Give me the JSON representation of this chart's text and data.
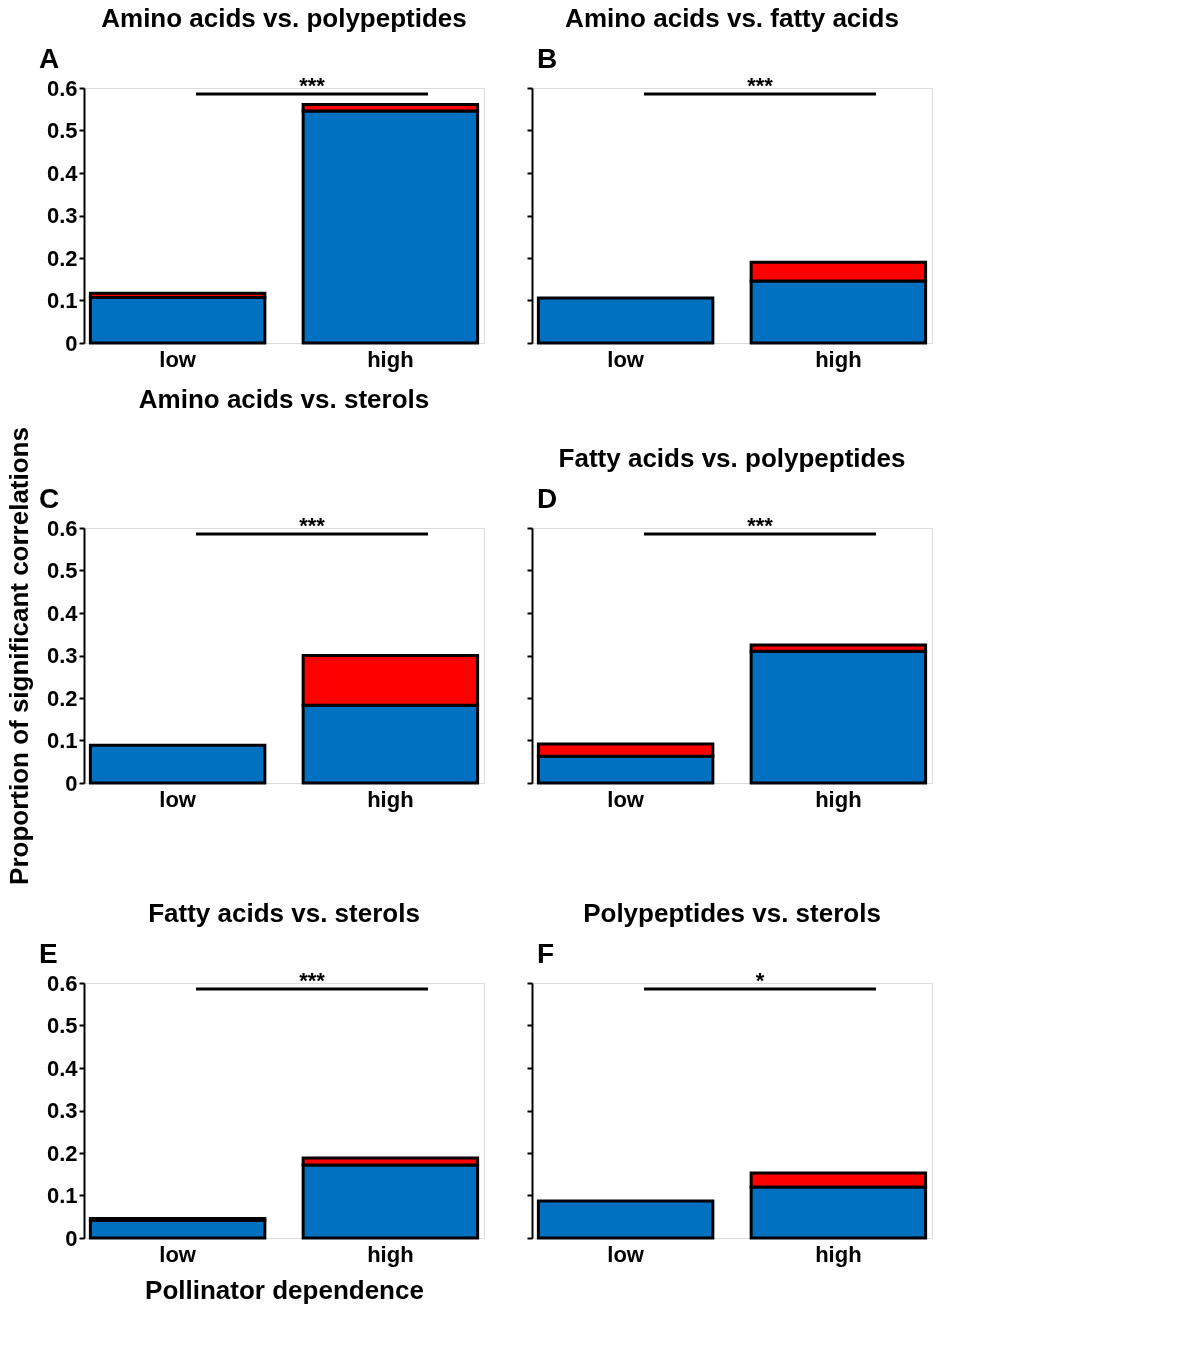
{
  "chart_data": [
    {
      "type": "bar",
      "stacked": true,
      "title": "Amino acids vs. polypeptides",
      "annotations": [
        "A",
        "***"
      ],
      "categories": [
        "low",
        "high"
      ],
      "ylim": [
        0,
        0.6
      ],
      "yticks": [
        0,
        0.1,
        0.2,
        0.3,
        0.4,
        0.5,
        0.6
      ],
      "series": [
        {
          "color": "#0070c0",
          "values": [
            0.107,
            0.546
          ]
        },
        {
          "color": "#ff0000",
          "values": [
            0.01,
            0.015
          ]
        }
      ]
    },
    {
      "type": "bar",
      "stacked": true,
      "title": "Amino acids vs. fatty acids",
      "annotations": [
        "B",
        "***"
      ],
      "categories": [
        "low",
        "high"
      ],
      "ylim": [
        0,
        0.6
      ],
      "yticks": [
        {
          "value": 0,
          "label": null
        },
        {
          "value": 0.1,
          "label": null
        },
        {
          "value": 0.2,
          "label": null
        },
        {
          "value": 0.3,
          "label": null
        },
        {
          "value": 0.4,
          "label": null
        },
        {
          "value": 0.5,
          "label": null
        },
        {
          "value": 0.6,
          "label": null
        }
      ],
      "tick_labels": "x",
      "series": [
        {
          "color": "#0070c0",
          "values": [
            0.106,
            0.146
          ]
        },
        {
          "color": "#ff0000",
          "values": [
            null,
            0.044
          ]
        }
      ]
    },
    {
      "type": "bar",
      "stacked": true,
      "title": "Amino acids vs. sterols",
      "ylabel": "Proportion of significant correlations",
      "annotations": [
        "C",
        "***"
      ],
      "categories": [
        "low",
        "high"
      ],
      "ylim": [
        0,
        0.6
      ],
      "yticks": [
        0,
        0.1,
        0.2,
        0.3,
        0.4,
        0.5,
        0.6
      ],
      "series": [
        {
          "color": "#0070c0",
          "values": [
            0.089,
            0.183
          ]
        },
        {
          "color": "#ff0000",
          "values": [
            null,
            0.117
          ]
        }
      ]
    },
    {
      "type": "bar",
      "stacked": true,
      "title": "Fatty acids vs. polypeptides",
      "annotations": [
        "D",
        "***"
      ],
      "categories": [
        "low",
        "high"
      ],
      "ylim": [
        0,
        0.6
      ],
      "yticks": [
        {
          "value": 0,
          "label": null
        },
        {
          "value": 0.1,
          "label": null
        },
        {
          "value": 0.2,
          "label": null
        },
        {
          "value": 0.3,
          "label": null
        },
        {
          "value": 0.4,
          "label": null
        },
        {
          "value": 0.5,
          "label": null
        },
        {
          "value": 0.6,
          "label": null
        }
      ],
      "tick_labels": "x",
      "series": [
        {
          "color": "#0070c0",
          "values": [
            0.063,
            0.31
          ]
        },
        {
          "color": "#ff0000",
          "values": [
            0.029,
            0.015
          ]
        }
      ]
    },
    {
      "type": "bar",
      "stacked": true,
      "title": "Fatty acids vs. sterols",
      "xlabel": "Pollinator dependence",
      "annotations": [
        "E",
        "***"
      ],
      "categories": [
        "low",
        "high"
      ],
      "ylim": [
        0,
        0.6
      ],
      "yticks": [
        0,
        0.1,
        0.2,
        0.3,
        0.4,
        0.5,
        0.6
      ],
      "series": [
        {
          "color": "#0070c0",
          "values": [
            0.042,
            0.172
          ]
        },
        {
          "color": "#ff0000",
          "values": [
            0.004,
            0.016
          ]
        }
      ]
    },
    {
      "type": "bar",
      "stacked": true,
      "title": "Polypeptides vs.  sterols",
      "annotations": [
        "F",
        "*"
      ],
      "categories": [
        "low",
        "high"
      ],
      "ylim": [
        0,
        0.6
      ],
      "yticks": [
        {
          "value": 0,
          "label": null
        },
        {
          "value": 0.1,
          "label": null
        },
        {
          "value": 0.2,
          "label": null
        },
        {
          "value": 0.3,
          "label": null
        },
        {
          "value": 0.4,
          "label": null
        },
        {
          "value": 0.5,
          "label": null
        },
        {
          "value": 0.6,
          "label": null
        }
      ],
      "tick_labels": "x",
      "series": [
        {
          "color": "#0070c0",
          "values": [
            0.087,
            0.12
          ]
        },
        {
          "color": "#ff0000",
          "values": [
            null,
            0.033
          ]
        }
      ]
    }
  ]
}
